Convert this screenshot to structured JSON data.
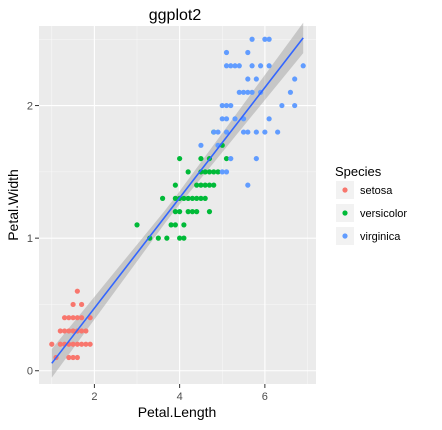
{
  "chart_data": {
    "type": "scatter",
    "title": "ggplot2",
    "xlabel": "Petal.Length",
    "ylabel": "Petal.Width",
    "xlim": [
      0.7,
      7.2
    ],
    "ylim": [
      -0.1,
      2.6
    ],
    "x_ticks": [
      2,
      4,
      6
    ],
    "y_ticks": [
      0,
      1,
      2
    ],
    "grid": true,
    "legend": {
      "title": "Species",
      "position": "right"
    },
    "series": [
      {
        "name": "setosa",
        "color": "#f8766d",
        "points": [
          [
            1.0,
            0.2
          ],
          [
            1.1,
            0.1
          ],
          [
            1.2,
            0.2
          ],
          [
            1.3,
            0.2
          ],
          [
            1.3,
            0.3
          ],
          [
            1.4,
            0.2
          ],
          [
            1.4,
            0.3
          ],
          [
            1.4,
            0.1
          ],
          [
            1.5,
            0.2
          ],
          [
            1.5,
            0.4
          ],
          [
            1.5,
            0.1
          ],
          [
            1.5,
            0.3
          ],
          [
            1.6,
            0.2
          ],
          [
            1.6,
            0.4
          ],
          [
            1.6,
            0.6
          ],
          [
            1.6,
            0.3
          ],
          [
            1.7,
            0.2
          ],
          [
            1.7,
            0.4
          ],
          [
            1.7,
            0.3
          ],
          [
            1.7,
            0.5
          ],
          [
            1.8,
            0.2
          ],
          [
            1.8,
            0.3
          ],
          [
            1.9,
            0.2
          ],
          [
            1.9,
            0.4
          ],
          [
            1.6,
            0.1
          ],
          [
            1.2,
            0.3
          ],
          [
            1.4,
            0.4
          ],
          [
            1.3,
            0.4
          ],
          [
            1.5,
            0.5
          ]
        ]
      },
      {
        "name": "versicolor",
        "color": "#00ba38",
        "points": [
          [
            3.0,
            1.1
          ],
          [
            3.3,
            1.0
          ],
          [
            3.5,
            1.0
          ],
          [
            3.6,
            1.3
          ],
          [
            3.7,
            1.0
          ],
          [
            3.8,
            1.1
          ],
          [
            3.9,
            1.1
          ],
          [
            3.9,
            1.2
          ],
          [
            3.9,
            1.4
          ],
          [
            4.0,
            1.0
          ],
          [
            4.0,
            1.2
          ],
          [
            4.0,
            1.3
          ],
          [
            4.1,
            1.0
          ],
          [
            4.1,
            1.3
          ],
          [
            4.2,
            1.2
          ],
          [
            4.2,
            1.3
          ],
          [
            4.2,
            1.5
          ],
          [
            4.3,
            1.3
          ],
          [
            4.4,
            1.2
          ],
          [
            4.4,
            1.3
          ],
          [
            4.4,
            1.4
          ],
          [
            4.5,
            1.3
          ],
          [
            4.5,
            1.5
          ],
          [
            4.5,
            1.6
          ],
          [
            4.6,
            1.3
          ],
          [
            4.6,
            1.4
          ],
          [
            4.6,
            1.5
          ],
          [
            4.7,
            1.2
          ],
          [
            4.7,
            1.4
          ],
          [
            4.7,
            1.5
          ],
          [
            4.7,
            1.6
          ],
          [
            4.8,
            1.4
          ],
          [
            4.8,
            1.8
          ],
          [
            4.9,
            1.5
          ],
          [
            5.0,
            1.7
          ],
          [
            5.1,
            1.6
          ],
          [
            4.0,
            1.6
          ],
          [
            4.8,
            1.5
          ],
          [
            3.9,
            1.3
          ],
          [
            4.5,
            1.4
          ],
          [
            4.1,
            1.1
          ],
          [
            4.3,
            1.2
          ]
        ]
      },
      {
        "name": "virginica",
        "color": "#619cff",
        "points": [
          [
            4.5,
            1.7
          ],
          [
            4.8,
            1.8
          ],
          [
            4.9,
            1.8
          ],
          [
            5.0,
            1.5
          ],
          [
            5.0,
            2.0
          ],
          [
            5.0,
            1.9
          ],
          [
            5.1,
            1.5
          ],
          [
            5.1,
            1.8
          ],
          [
            5.1,
            1.9
          ],
          [
            5.1,
            2.0
          ],
          [
            5.1,
            2.3
          ],
          [
            5.1,
            2.4
          ],
          [
            5.2,
            2.0
          ],
          [
            5.2,
            2.3
          ],
          [
            5.3,
            1.9
          ],
          [
            5.3,
            2.3
          ],
          [
            5.4,
            2.1
          ],
          [
            5.4,
            2.3
          ],
          [
            5.5,
            1.8
          ],
          [
            5.5,
            2.1
          ],
          [
            5.5,
            1.9
          ],
          [
            5.6,
            1.4
          ],
          [
            5.6,
            1.8
          ],
          [
            5.6,
            2.1
          ],
          [
            5.6,
            2.2
          ],
          [
            5.6,
            2.4
          ],
          [
            5.7,
            2.1
          ],
          [
            5.7,
            2.3
          ],
          [
            5.7,
            2.5
          ],
          [
            5.8,
            1.6
          ],
          [
            5.8,
            1.8
          ],
          [
            5.8,
            2.2
          ],
          [
            5.9,
            2.1
          ],
          [
            5.9,
            2.3
          ],
          [
            6.0,
            1.8
          ],
          [
            6.0,
            2.5
          ],
          [
            6.1,
            1.9
          ],
          [
            6.1,
            2.3
          ],
          [
            6.1,
            2.5
          ],
          [
            6.3,
            1.8
          ],
          [
            6.4,
            2.0
          ],
          [
            6.6,
            2.1
          ],
          [
            6.7,
            2.0
          ],
          [
            6.7,
            2.2
          ],
          [
            6.9,
            2.3
          ],
          [
            4.9,
            1.7
          ],
          [
            5.2,
            1.6
          ]
        ]
      }
    ],
    "trend": {
      "intercept": -0.36,
      "slope": 0.416,
      "band": 0.045
    }
  },
  "colors": {
    "panel_bg": "#ebebeb",
    "grid_major": "#ffffff",
    "trend_line": "#3366ff",
    "band": "#999999"
  }
}
